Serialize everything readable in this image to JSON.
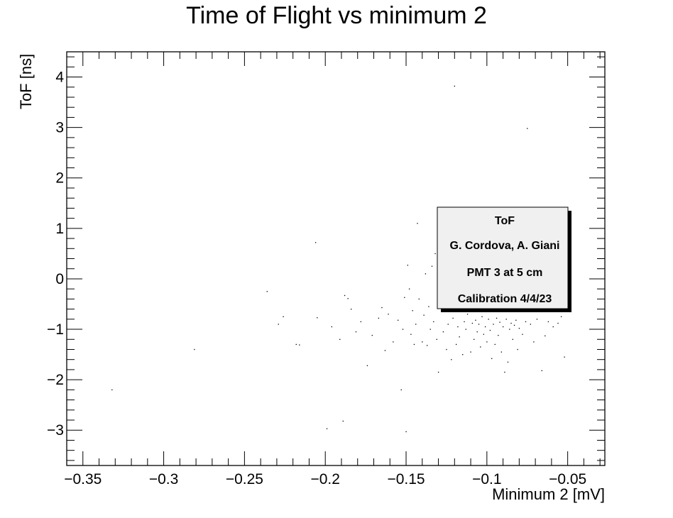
{
  "chart_data": {
    "type": "scatter",
    "title": "Time of Flight vs minimum 2",
    "xlabel": "Minimum 2 [mV]",
    "ylabel": "ToF [ns]",
    "xlim": [
      -0.36,
      -0.027
    ],
    "ylim": [
      -3.7,
      4.5
    ],
    "x_ticks": [
      -0.35,
      -0.3,
      -0.25,
      -0.2,
      -0.15,
      -0.1,
      -0.05
    ],
    "x_tick_labels": [
      "−0.35",
      "−0.3",
      "−0.25",
      "−0.2",
      "−0.15",
      "−0.1",
      "−0.05"
    ],
    "y_ticks": [
      -3,
      -2,
      -1,
      0,
      1,
      2,
      3,
      4
    ],
    "y_tick_labels": [
      "−3",
      "−2",
      "−1",
      "0",
      "1",
      "2",
      "3",
      "4"
    ],
    "grid": false,
    "legend": "none",
    "marker_color": "#000000",
    "series": [
      {
        "points": [
          [
            -0.332,
            -2.2
          ],
          [
            -0.281,
            -1.4
          ],
          [
            -0.236,
            -0.25
          ],
          [
            -0.229,
            -0.9
          ],
          [
            -0.226,
            -0.75
          ],
          [
            -0.218,
            -1.3
          ],
          [
            -0.216,
            -1.31
          ],
          [
            -0.206,
            0.72
          ],
          [
            -0.205,
            -0.77
          ],
          [
            -0.199,
            -2.97
          ],
          [
            -0.196,
            -0.95
          ],
          [
            -0.191,
            -1.2
          ],
          [
            -0.189,
            -2.82
          ],
          [
            -0.188,
            -0.33
          ],
          [
            -0.186,
            -0.39
          ],
          [
            -0.184,
            -0.6
          ],
          [
            -0.181,
            -1.05
          ],
          [
            -0.178,
            -0.85
          ],
          [
            -0.174,
            -1.72
          ],
          [
            -0.171,
            -1.12
          ],
          [
            -0.167,
            -0.78
          ],
          [
            -0.165,
            -0.57
          ],
          [
            -0.163,
            -1.42
          ],
          [
            -0.161,
            -0.7
          ],
          [
            -0.158,
            -1.25
          ],
          [
            -0.155,
            -0.82
          ],
          [
            -0.153,
            -2.2
          ],
          [
            -0.152,
            -1.0
          ],
          [
            -0.151,
            -0.37
          ],
          [
            -0.15,
            -3.03
          ],
          [
            -0.149,
            0.27
          ],
          [
            -0.148,
            -0.2
          ],
          [
            -0.147,
            -1.1
          ],
          [
            -0.146,
            -0.63
          ],
          [
            -0.145,
            -1.3
          ],
          [
            -0.144,
            -0.9
          ],
          [
            -0.143,
            1.1
          ],
          [
            -0.142,
            -0.4
          ],
          [
            -0.14,
            -1.25
          ],
          [
            -0.139,
            -0.72
          ],
          [
            -0.138,
            0.1
          ],
          [
            -0.137,
            -1.32
          ],
          [
            -0.136,
            -0.55
          ],
          [
            -0.135,
            -1.0
          ],
          [
            -0.134,
            0.25
          ],
          [
            -0.133,
            -0.85
          ],
          [
            -0.132,
            0.5
          ],
          [
            -0.131,
            -1.2
          ],
          [
            -0.13,
            -1.85
          ],
          [
            -0.129,
            -0.3
          ],
          [
            -0.128,
            -0.65
          ],
          [
            -0.127,
            -1.05
          ],
          [
            -0.125,
            -1.4
          ],
          [
            -0.124,
            -0.9
          ],
          [
            -0.123,
            0.05
          ],
          [
            -0.122,
            -1.6
          ],
          [
            -0.121,
            -0.78
          ],
          [
            -0.12,
            3.82
          ],
          [
            -0.119,
            -1.3
          ],
          [
            -0.118,
            -0.95
          ],
          [
            -0.117,
            -1.15
          ],
          [
            -0.116,
            -0.6
          ],
          [
            -0.115,
            -1.5
          ],
          [
            -0.114,
            -0.85
          ],
          [
            -0.113,
            -1.0
          ],
          [
            -0.112,
            -0.7
          ],
          [
            -0.11,
            -1.45
          ],
          [
            -0.109,
            -0.88
          ],
          [
            -0.108,
            -1.2
          ],
          [
            -0.107,
            -0.82
          ],
          [
            -0.106,
            -1.05
          ],
          [
            -0.105,
            -0.9
          ],
          [
            -0.104,
            -1.35
          ],
          [
            -0.103,
            -0.75
          ],
          [
            -0.102,
            -1.1
          ],
          [
            -0.101,
            -0.95
          ],
          [
            -0.1,
            -1.25
          ],
          [
            -0.099,
            -0.8
          ],
          [
            -0.098,
            -1.02
          ],
          [
            -0.097,
            -1.58
          ],
          [
            -0.096,
            -0.9
          ],
          [
            -0.095,
            -1.3
          ],
          [
            -0.094,
            -0.78
          ],
          [
            -0.093,
            -1.12
          ],
          [
            -0.092,
            -0.86
          ],
          [
            -0.091,
            -1.45
          ],
          [
            -0.09,
            -0.95
          ],
          [
            -0.089,
            -1.85
          ],
          [
            -0.088,
            -0.8
          ],
          [
            -0.087,
            -1.65
          ],
          [
            -0.086,
            -1.0
          ],
          [
            -0.085,
            -0.88
          ],
          [
            -0.084,
            -1.2
          ],
          [
            -0.083,
            -0.92
          ],
          [
            -0.082,
            -0.82
          ],
          [
            -0.081,
            -1.4
          ],
          [
            -0.08,
            -0.98
          ],
          [
            -0.078,
            -1.1
          ],
          [
            -0.076,
            -0.85
          ],
          [
            -0.075,
            2.98
          ],
          [
            -0.073,
            -0.9
          ],
          [
            -0.071,
            -1.25
          ],
          [
            -0.069,
            -0.8
          ],
          [
            -0.066,
            -1.82
          ],
          [
            -0.064,
            -1.13
          ],
          [
            -0.062,
            -0.85
          ],
          [
            -0.059,
            -0.95
          ],
          [
            -0.056,
            -0.88
          ],
          [
            -0.054,
            -0.75
          ],
          [
            -0.052,
            -1.55
          ]
        ]
      }
    ]
  },
  "stats_box": {
    "lines": [
      "ToF",
      "G. Cordova, A. Giani",
      "PMT 3 at 5 cm",
      "Calibration 4/4/23"
    ]
  }
}
